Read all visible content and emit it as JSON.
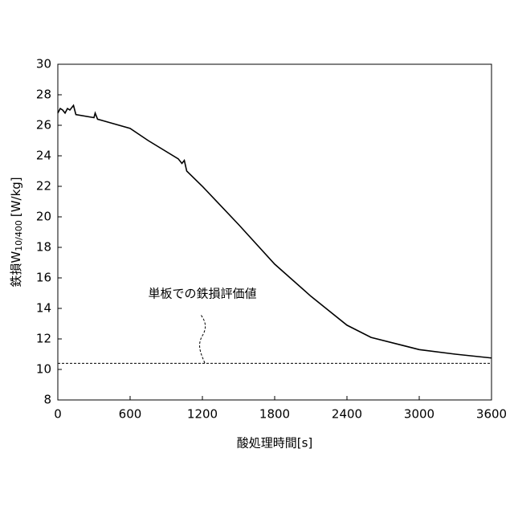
{
  "chart_data": {
    "type": "line",
    "x_label": "酸処理時間[s]",
    "y_label": "鉄損W",
    "y_label_sub": "10/400",
    "y_label_unit": "[W/kg]",
    "x": [
      0,
      20,
      40,
      60,
      80,
      100,
      130,
      150,
      300,
      310,
      330,
      600,
      750,
      1000,
      1030,
      1050,
      1070,
      1200,
      1500,
      1800,
      2100,
      2400,
      2600,
      3000,
      3300,
      3600
    ],
    "series": [
      {
        "color": "#000000",
        "values": [
          26.8,
          27.1,
          27.0,
          26.8,
          27.1,
          27.0,
          27.3,
          26.7,
          26.5,
          26.8,
          26.4,
          25.8,
          25.0,
          23.8,
          23.5,
          23.7,
          23.0,
          22.0,
          19.5,
          16.9,
          14.8,
          12.9,
          12.1,
          11.3,
          11.0,
          10.75
        ]
      }
    ],
    "reference_line": {
      "value": 10.4,
      "label": "単板での鉄損評価値"
    },
    "xlim": [
      0,
      3600
    ],
    "xticks": [
      0,
      600,
      1200,
      1800,
      2400,
      3000,
      3600
    ],
    "ylim": [
      8,
      30
    ],
    "yticks": [
      8,
      10,
      12,
      14,
      16,
      18,
      20,
      22,
      24,
      26,
      28,
      30
    ]
  }
}
